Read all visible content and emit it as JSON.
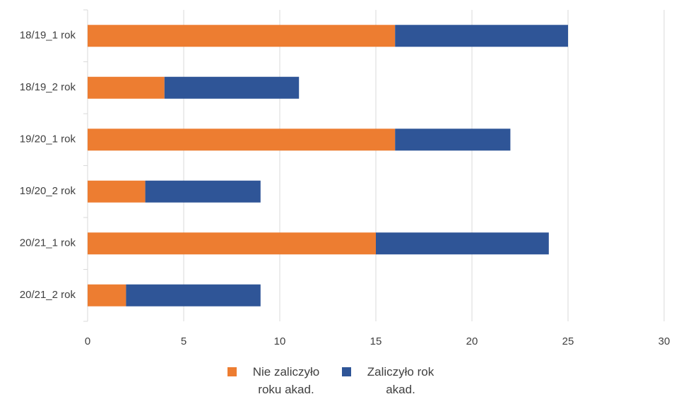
{
  "chart_data": {
    "type": "bar",
    "orientation": "horizontal",
    "stacked": true,
    "categories": [
      "18/19_1 rok",
      "18/19_2 rok",
      "19/20_1 rok",
      "19/20_2 rok",
      "20/21_1 rok",
      "20/21_2 rok"
    ],
    "series": [
      {
        "name": "Nie zaliczyło roku akad.",
        "color": "#ED7D31",
        "values": [
          16,
          4,
          16,
          3,
          15,
          2
        ]
      },
      {
        "name": "Zaliczyło rok akad.",
        "color": "#2F5597",
        "values": [
          9,
          7,
          6,
          6,
          9,
          7
        ]
      }
    ],
    "xlim": [
      0,
      30
    ],
    "xticks": [
      0,
      5,
      10,
      15,
      20,
      25,
      30
    ],
    "grid": "vertical",
    "legend": "bottom"
  },
  "legend": {
    "items": [
      {
        "label": "Nie zaliczyło roku akad.",
        "color": "#ED7D31"
      },
      {
        "label": "Zaliczyło rok akad.",
        "color": "#2F5597"
      }
    ]
  }
}
